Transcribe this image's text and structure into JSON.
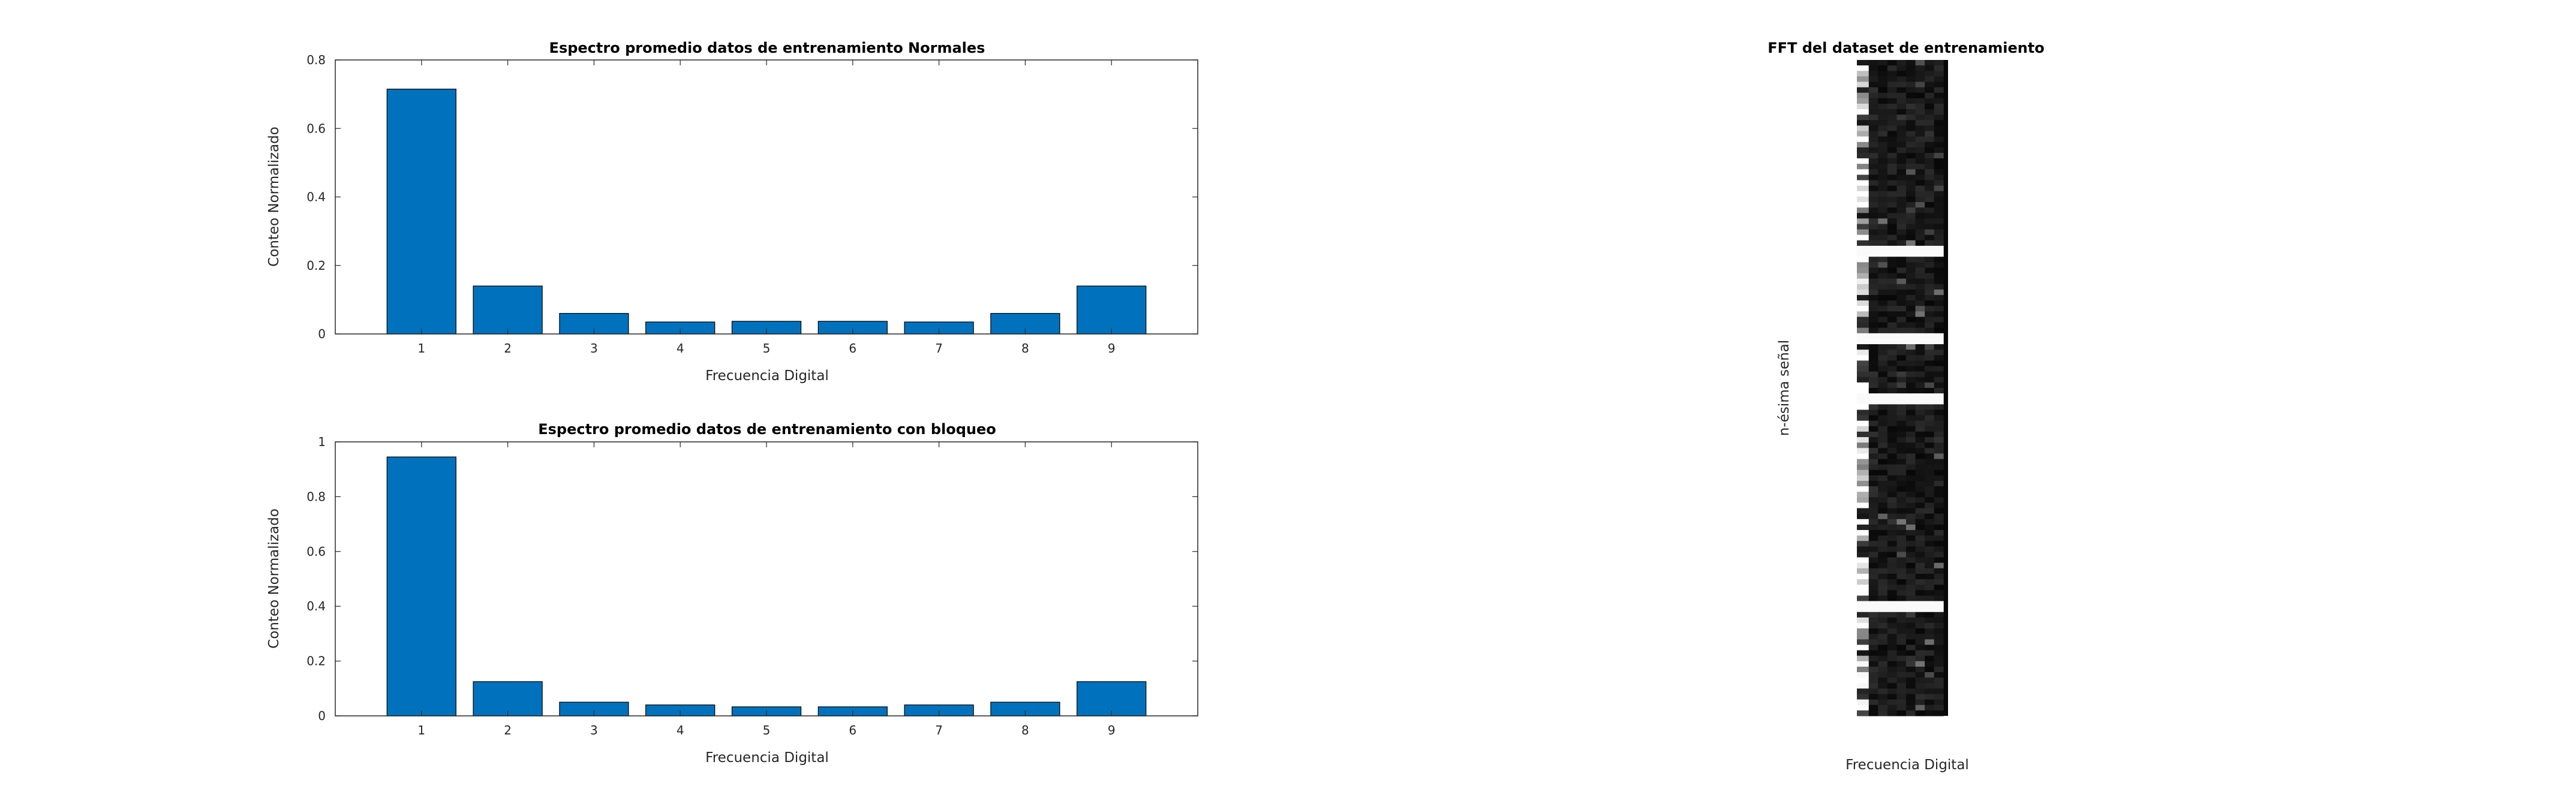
{
  "chart_data": [
    {
      "type": "bar",
      "title": "Espectro promedio datos de entrenamiento Normales",
      "xlabel": "Frecuencia Digital",
      "ylabel": "Conteo Normalizado",
      "categories": [
        "1",
        "2",
        "3",
        "4",
        "5",
        "6",
        "7",
        "8",
        "9"
      ],
      "values": [
        0.715,
        0.14,
        0.06,
        0.035,
        0.037,
        0.037,
        0.035,
        0.06,
        0.14
      ],
      "ylim": [
        0,
        0.8
      ],
      "xlim": [
        0,
        10
      ],
      "yticks": [
        "0",
        "0.2",
        "0.4",
        "0.6",
        "0.8"
      ],
      "grid": false,
      "bar_color": "#0072bd"
    },
    {
      "type": "bar",
      "title": "Espectro promedio datos de entrenamiento con bloqueo",
      "xlabel": "Frecuencia Digital",
      "ylabel": "Conteo Normalizado",
      "categories": [
        "1",
        "2",
        "3",
        "4",
        "5",
        "6",
        "7",
        "8",
        "9"
      ],
      "values": [
        0.945,
        0.125,
        0.05,
        0.04,
        0.033,
        0.033,
        0.04,
        0.05,
        0.125
      ],
      "ylim": [
        0,
        1
      ],
      "xlim": [
        0,
        10
      ],
      "yticks": [
        "0",
        "0.2",
        "0.4",
        "0.6",
        "0.8",
        "1"
      ],
      "grid": false,
      "bar_color": "#0072bd"
    },
    {
      "type": "heatmap",
      "title": "FFT del dataset de entrenamiento",
      "xlabel": "Frecuencia Digital",
      "ylabel": "n-ésima señal",
      "colormap": "gray",
      "columns": 9
    }
  ]
}
